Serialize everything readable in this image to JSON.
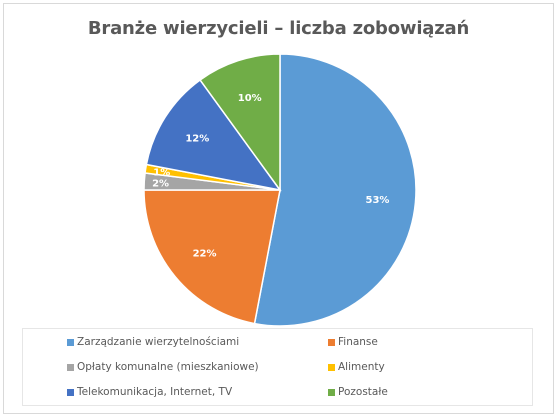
{
  "chart_data": {
    "type": "pie",
    "title": "Branże wierzycieli – liczba zobowiązań",
    "categories": [
      "Zarządzanie wierzytelnościami",
      "Finanse",
      "Opłaty komunalne (mieszkaniowe)",
      "Alimenty",
      "Telekomunikacja, Internet, TV",
      "Pozostałe"
    ],
    "values": [
      53,
      22,
      2,
      1,
      12,
      10
    ],
    "value_labels": [
      "53%",
      "22%",
      "2%",
      "1%",
      "12%",
      "10%"
    ],
    "colors": [
      "#5b9bd5",
      "#ed7d31",
      "#a5a5a5",
      "#ffc000",
      "#4472c4",
      "#70ad47"
    ],
    "label_colors": [
      "#ffffff",
      "#ffffff",
      "#ffffff",
      "#ffffff",
      "#ffffff",
      "#ffffff"
    ],
    "legend_position": "bottom"
  }
}
